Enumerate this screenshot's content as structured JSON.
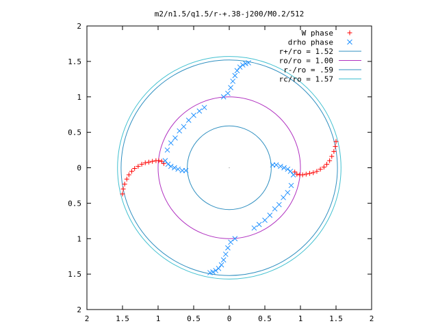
{
  "chart_data": {
    "type": "scatter",
    "title": "m2/n1.5/q1.5/r-+.38-j200/M0.2/512",
    "xlim": [
      -2,
      2
    ],
    "ylim": [
      -2,
      2
    ],
    "x_ticks": [
      -2,
      -1.5,
      -1,
      -0.5,
      0,
      0.5,
      1,
      1.5,
      2
    ],
    "x_tick_labels": [
      "2",
      "1.5",
      "1",
      "0.5",
      "0",
      "0.5",
      "1",
      "1.5",
      "2"
    ],
    "y_ticks": [
      2,
      1.5,
      1,
      0.5,
      0,
      -0.5,
      -1,
      -1.5,
      -2
    ],
    "y_tick_labels": [
      "2",
      "1.5",
      "1",
      "0.5",
      "0",
      "0.5",
      "1",
      "1.5",
      "2"
    ],
    "grid": false,
    "legend_position": "top-right",
    "circles": [
      {
        "name": "r+/ro = 1.52",
        "r": 1.52,
        "color": "#2f8fc0"
      },
      {
        "name": "ro/ro = 1.00",
        "r": 1.0,
        "color": "#b030c0"
      },
      {
        "name": "r-/ro = .59",
        "r": 0.59,
        "color": "#2f8fc0"
      },
      {
        "name": "rc/ro = 1.57",
        "r": 1.57,
        "color": "#40c0d0"
      }
    ],
    "series": [
      {
        "name": "W phase",
        "marker": "plus",
        "color": "#ff0000",
        "points": [
          [
            -1.5,
            -0.37
          ],
          [
            -1.49,
            -0.3
          ],
          [
            -1.47,
            -0.23
          ],
          [
            -1.44,
            -0.16
          ],
          [
            -1.41,
            -0.1
          ],
          [
            -1.37,
            -0.05
          ],
          [
            -1.33,
            -0.01
          ],
          [
            -1.28,
            0.02
          ],
          [
            -1.23,
            0.05
          ],
          [
            -1.18,
            0.07
          ],
          [
            -1.13,
            0.08
          ],
          [
            -1.08,
            0.09
          ],
          [
            -1.03,
            0.1
          ],
          [
            -0.99,
            0.1
          ],
          [
            -0.95,
            0.09
          ],
          [
            -0.92,
            0.06
          ],
          [
            1.5,
            0.37
          ],
          [
            1.49,
            0.3
          ],
          [
            1.47,
            0.23
          ],
          [
            1.44,
            0.16
          ],
          [
            1.41,
            0.1
          ],
          [
            1.37,
            0.05
          ],
          [
            1.33,
            0.01
          ],
          [
            1.28,
            -0.02
          ],
          [
            1.23,
            -0.05
          ],
          [
            1.18,
            -0.07
          ],
          [
            1.13,
            -0.08
          ],
          [
            1.08,
            -0.09
          ],
          [
            1.03,
            -0.1
          ],
          [
            0.99,
            -0.1
          ],
          [
            0.95,
            -0.09
          ],
          [
            0.92,
            -0.06
          ]
        ]
      },
      {
        "name": "drho phase",
        "marker": "cross",
        "color": "#1e90ff",
        "points": [
          [
            0.27,
            1.48
          ],
          [
            0.23,
            1.47
          ],
          [
            0.19,
            1.45
          ],
          [
            0.15,
            1.42
          ],
          [
            0.11,
            1.37
          ],
          [
            0.08,
            1.3
          ],
          [
            0.05,
            1.22
          ],
          [
            0.02,
            1.13
          ],
          [
            -0.02,
            1.05
          ],
          [
            -0.08,
            1.0
          ],
          [
            -0.27,
            -1.48
          ],
          [
            -0.23,
            -1.47
          ],
          [
            -0.19,
            -1.45
          ],
          [
            -0.15,
            -1.42
          ],
          [
            -0.11,
            -1.37
          ],
          [
            -0.08,
            -1.3
          ],
          [
            -0.05,
            -1.22
          ],
          [
            -0.02,
            -1.13
          ],
          [
            0.02,
            -1.05
          ],
          [
            0.08,
            -1.0
          ],
          [
            -0.9,
            0.1
          ],
          [
            -0.86,
            0.05
          ],
          [
            -0.82,
            0.02
          ],
          [
            -0.77,
            0.0
          ],
          [
            -0.72,
            -0.02
          ],
          [
            -0.66,
            -0.04
          ],
          [
            -0.61,
            -0.04
          ],
          [
            0.61,
            0.04
          ],
          [
            0.66,
            0.04
          ],
          [
            0.72,
            0.02
          ],
          [
            0.77,
            0.0
          ],
          [
            0.82,
            -0.02
          ],
          [
            0.86,
            -0.05
          ],
          [
            0.9,
            -0.1
          ],
          [
            0.35,
            -0.85
          ],
          [
            0.42,
            -0.8
          ],
          [
            0.5,
            -0.74
          ],
          [
            0.57,
            -0.67
          ],
          [
            0.64,
            -0.58
          ],
          [
            0.7,
            -0.52
          ],
          [
            0.76,
            -0.42
          ],
          [
            0.82,
            -0.35
          ],
          [
            0.87,
            -0.25
          ],
          [
            -0.35,
            0.85
          ],
          [
            -0.42,
            0.8
          ],
          [
            -0.5,
            0.74
          ],
          [
            -0.57,
            0.67
          ],
          [
            -0.64,
            0.58
          ],
          [
            -0.7,
            0.52
          ],
          [
            -0.76,
            0.42
          ],
          [
            -0.82,
            0.35
          ],
          [
            -0.87,
            0.25
          ]
        ]
      }
    ]
  }
}
